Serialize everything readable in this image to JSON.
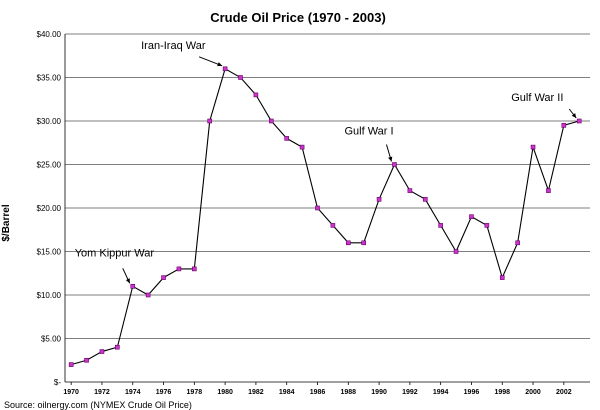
{
  "chart_data": {
    "type": "line",
    "title": "Crude Oil Price (1970 - 2003)",
    "xlabel": "",
    "ylabel": "$/Barrel",
    "ylim": [
      0,
      40
    ],
    "y_ticks": [
      "$-",
      "$5.00",
      "$10.00",
      "$15.00",
      "$20.00",
      "$25.00",
      "$30.00",
      "$35.00",
      "$40.00"
    ],
    "x_ticks": [
      "1970",
      "1972",
      "1974",
      "1976",
      "1978",
      "1980",
      "1982",
      "1984",
      "1986",
      "1988",
      "1990",
      "1992",
      "1994",
      "1996",
      "1998",
      "2000",
      "2002"
    ],
    "grid": "horizontal",
    "series": [
      {
        "color": "#cc33cc",
        "x": [
          1970,
          1971,
          1972,
          1973,
          1974,
          1975,
          1976,
          1977,
          1978,
          1979,
          1980,
          1981,
          1982,
          1983,
          1984,
          1985,
          1986,
          1987,
          1988,
          1989,
          1990,
          1991,
          1992,
          1993,
          1994,
          1995,
          1996,
          1997,
          1998,
          1999,
          2000,
          2001,
          2002,
          2003
        ],
        "values": [
          2,
          2.5,
          3.5,
          4,
          11,
          10,
          12,
          13,
          13,
          30,
          36,
          35,
          33,
          30,
          28,
          27,
          20,
          18,
          16,
          16,
          21,
          25,
          22,
          21,
          18,
          15,
          19,
          18,
          12,
          16,
          27,
          22,
          29.5,
          30
        ]
      }
    ],
    "annotations": [
      {
        "text": "Iran-Iraq War",
        "x": 1980
      },
      {
        "text": "Yom Kippur War",
        "x": 1974
      },
      {
        "text": "Gulf War I",
        "x": 1991
      },
      {
        "text": "Gulf War II",
        "x": 2003
      }
    ],
    "source": "Source: oilnergy.com (NYMEX Crude Oil Price)"
  }
}
